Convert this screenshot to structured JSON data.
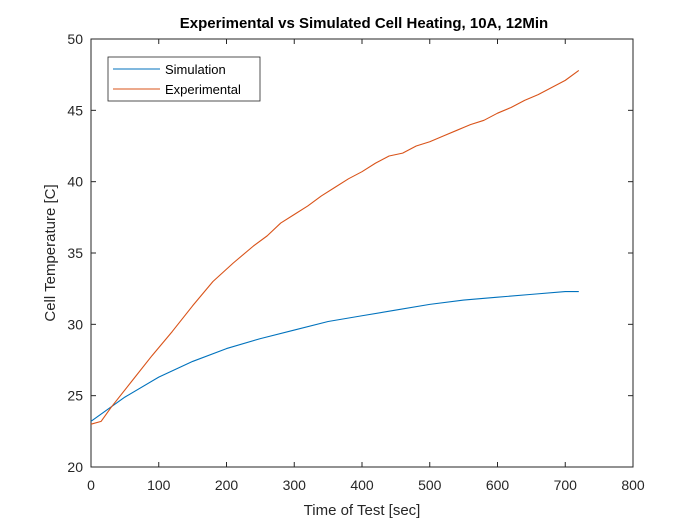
{
  "chart_data": {
    "type": "line",
    "title": "Experimental vs Simulated Cell Heating, 10A, 12Min",
    "xlabel": "Time of Test [sec]",
    "ylabel": "Cell Temperature [C]",
    "xlim": [
      0,
      800
    ],
    "ylim": [
      20,
      50
    ],
    "xticks": [
      0,
      100,
      200,
      300,
      400,
      500,
      600,
      700,
      800
    ],
    "yticks": [
      20,
      25,
      30,
      35,
      40,
      45,
      50
    ],
    "grid": false,
    "legend_position": "top-left",
    "series": [
      {
        "name": "Simulation",
        "color": "#0072BD",
        "x": [
          0,
          50,
          100,
          150,
          200,
          250,
          300,
          350,
          400,
          450,
          500,
          550,
          600,
          650,
          700,
          720
        ],
        "y": [
          23.2,
          24.9,
          26.3,
          27.4,
          28.3,
          29.0,
          29.6,
          30.2,
          30.6,
          31.0,
          31.4,
          31.7,
          31.9,
          32.1,
          32.3,
          32.3
        ]
      },
      {
        "name": "Experimental",
        "color": "#D95319",
        "x": [
          0,
          15,
          30,
          60,
          90,
          120,
          150,
          180,
          210,
          240,
          260,
          280,
          300,
          320,
          340,
          360,
          380,
          400,
          420,
          440,
          460,
          480,
          500,
          520,
          540,
          560,
          580,
          600,
          620,
          640,
          660,
          680,
          700,
          720
        ],
        "y": [
          23.0,
          23.2,
          24.2,
          26.0,
          27.8,
          29.5,
          31.3,
          33.0,
          34.3,
          35.5,
          36.2,
          37.1,
          37.7,
          38.3,
          39.0,
          39.6,
          40.2,
          40.7,
          41.3,
          41.8,
          42.0,
          42.5,
          42.8,
          43.2,
          43.6,
          44.0,
          44.3,
          44.8,
          45.2,
          45.7,
          46.1,
          46.6,
          47.1,
          47.8
        ]
      }
    ]
  }
}
